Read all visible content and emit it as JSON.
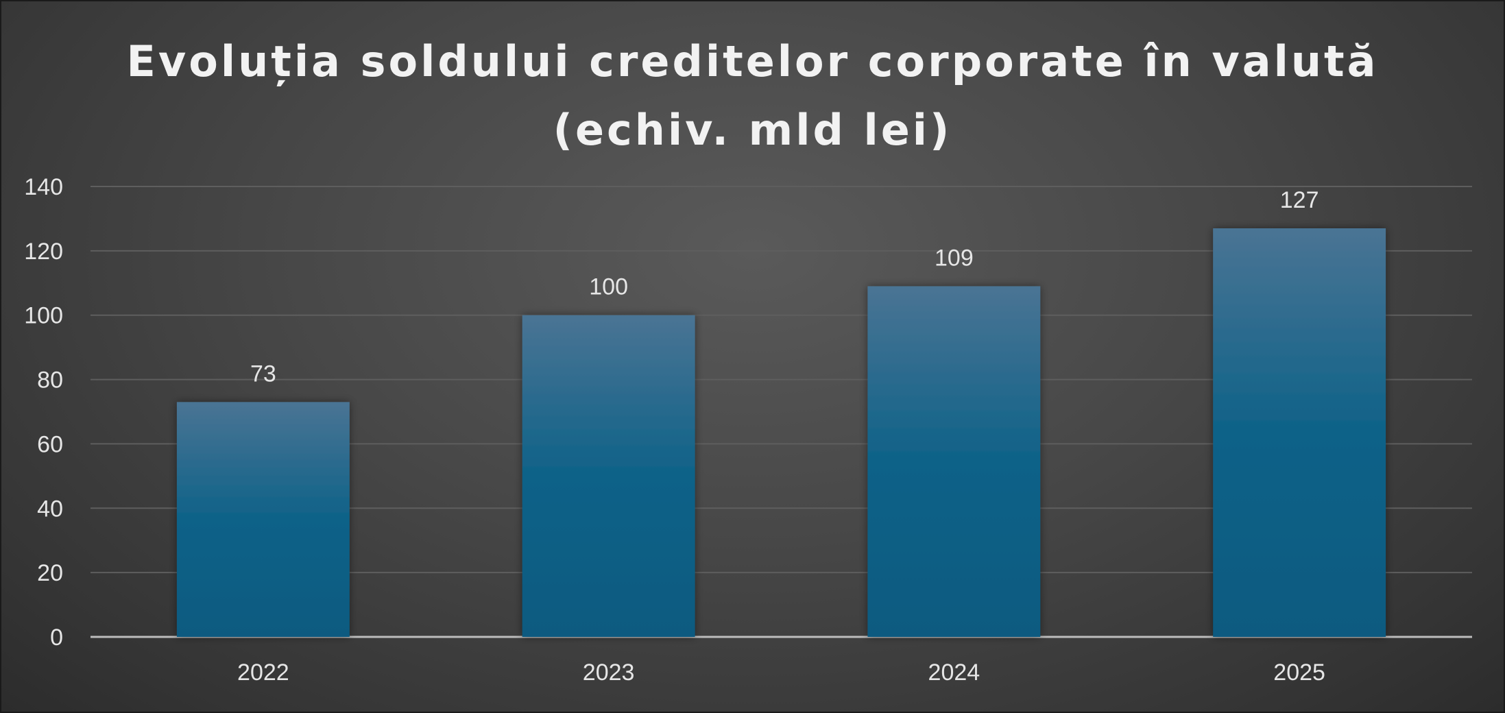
{
  "chart_data": {
    "type": "bar",
    "title_lines": [
      "Evoluția soldului creditelor corporate în valută",
      "(echiv. mld lei)"
    ],
    "categories": [
      "2022",
      "2023",
      "2024",
      "2025"
    ],
    "values": [
      73,
      100,
      109,
      127
    ],
    "data_labels": [
      "73",
      "100",
      "109",
      "127"
    ],
    "y_ticks": [
      0,
      20,
      40,
      60,
      80,
      100,
      120,
      140
    ],
    "ylim": [
      0,
      140
    ],
    "xlabel": "",
    "ylabel": "",
    "grid": true,
    "legend": "none",
    "colors": {
      "bar_top": "#4a7494",
      "bar_bottom": "#085a80",
      "grid": "#5e5e5e",
      "axis": "#bdbdbd",
      "text": "#e6e6e6"
    }
  }
}
